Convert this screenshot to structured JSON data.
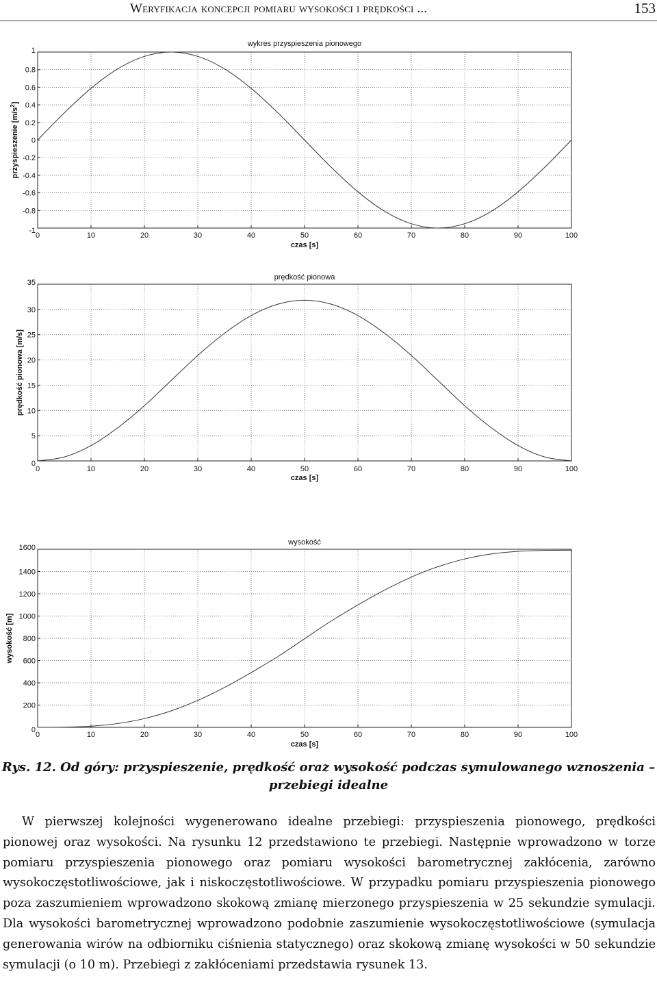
{
  "header": {
    "running_title": "Weryfikacja koncepcji pomiaru wysokości i prędkości ...",
    "page_number": "153"
  },
  "chart_data": [
    {
      "type": "line",
      "title": "wykres przyspieszenia pionowego",
      "xlabel": "czas [s]",
      "ylabel": "przyspieszenie [m/s",
      "ylabel_sup": "2",
      "ylabel_end": "]",
      "xlim": [
        0,
        100
      ],
      "ylim": [
        -1,
        1
      ],
      "xticks": [
        "0",
        "10",
        "20",
        "30",
        "40",
        "50",
        "60",
        "70",
        "80",
        "90",
        "100"
      ],
      "yticks": [
        "-1",
        "-0.8",
        "-0.6",
        "-0.4",
        "-0.2",
        "0",
        "0.2",
        "0.4",
        "0.6",
        "0.8",
        "1"
      ],
      "grid": true,
      "series": [
        {
          "x": [
            0,
            5,
            10,
            15,
            20,
            25,
            30,
            35,
            40,
            45,
            50,
            55,
            60,
            65,
            70,
            75,
            80,
            85,
            90,
            95,
            100
          ],
          "y": [
            0,
            0.309,
            0.588,
            0.809,
            0.951,
            1,
            0.951,
            0.809,
            0.588,
            0.309,
            0,
            -0.309,
            -0.588,
            -0.809,
            -0.951,
            -1,
            -0.951,
            -0.809,
            -0.588,
            -0.309,
            0
          ]
        }
      ]
    },
    {
      "type": "line",
      "title": "prędkość pionowa",
      "xlabel": "czas [s]",
      "ylabel": "prędkość pionowa [m/s]",
      "xlim": [
        0,
        100
      ],
      "ylim": [
        0,
        35
      ],
      "xticks": [
        "0",
        "10",
        "20",
        "30",
        "40",
        "50",
        "60",
        "70",
        "80",
        "90",
        "100"
      ],
      "yticks": [
        "0",
        "5",
        "10",
        "15",
        "20",
        "25",
        "30",
        "35"
      ],
      "grid": true,
      "series": [
        {
          "x": [
            0,
            5,
            10,
            15,
            20,
            25,
            30,
            35,
            40,
            45,
            50,
            55,
            60,
            65,
            70,
            75,
            80,
            85,
            90,
            95,
            100
          ],
          "y": [
            0,
            0.78,
            3.04,
            6.56,
            10.94,
            15.92,
            20.89,
            25.28,
            28.79,
            31.05,
            31.83,
            31.05,
            28.79,
            25.28,
            20.89,
            15.92,
            10.94,
            6.56,
            3.04,
            0.78,
            0
          ]
        }
      ]
    },
    {
      "type": "line",
      "title": "wysokość",
      "xlabel": "czas [s]",
      "ylabel": "wysokość [m]",
      "xlim": [
        0,
        100
      ],
      "ylim": [
        0,
        1600
      ],
      "xticks": [
        "0",
        "10",
        "20",
        "30",
        "40",
        "50",
        "60",
        "70",
        "80",
        "90",
        "100"
      ],
      "yticks": [
        "0",
        "200",
        "400",
        "600",
        "800",
        "1000",
        "1200",
        "1400",
        "1600"
      ],
      "grid": true,
      "series": [
        {
          "x": [
            0,
            5,
            10,
            15,
            20,
            25,
            30,
            35,
            40,
            45,
            50,
            55,
            60,
            65,
            70,
            75,
            80,
            85,
            90,
            95,
            100
          ],
          "y": [
            0,
            1.3,
            10.3,
            34.2,
            78.9,
            147.9,
            241.8,
            358.3,
            492.1,
            636.2,
            795.8,
            955.4,
            1099.5,
            1233.3,
            1349.8,
            1443.7,
            1512.7,
            1557.4,
            1581.3,
            1590.3,
            1591.6
          ]
        }
      ]
    }
  ],
  "caption": {
    "line1": "Rys. 12. Od góry: przyspieszenie, prędkość oraz wysokość podczas symulowanego wznoszenia –",
    "line2": "przebiegi idealne"
  },
  "body": {
    "paragraph": "W pierwszej kolejności wygenerowano idealne przebiegi: przyspieszenia pionowego, prędkości pionowej oraz wysokości. Na rysunku 12 przedstawiono te przebiegi. Następnie wprowadzono w torze pomiaru przyspieszenia pionowego oraz pomiaru wysokości barometrycznej zakłócenia, zarówno wysokoczęstotliwościowe, jak i niskoczęstotliwościowe. W przypadku pomiaru przyspieszenia pionowego poza zaszumieniem wprowadzono skokową zmianę mierzonego przyspieszenia w 25 sekundzie symulacji. Dla wysokości barometrycznej wprowadzono podobnie zaszumienie wysokoczęstotliwościowe (symulacja generowania wirów na odbiorniku ciśnienia statycznego) oraz skokową zmianę wysokości w 50 sekundzie symulacji (o 10 m). Przebiegi z zakłóceniami przedstawia rysunek 13."
  }
}
